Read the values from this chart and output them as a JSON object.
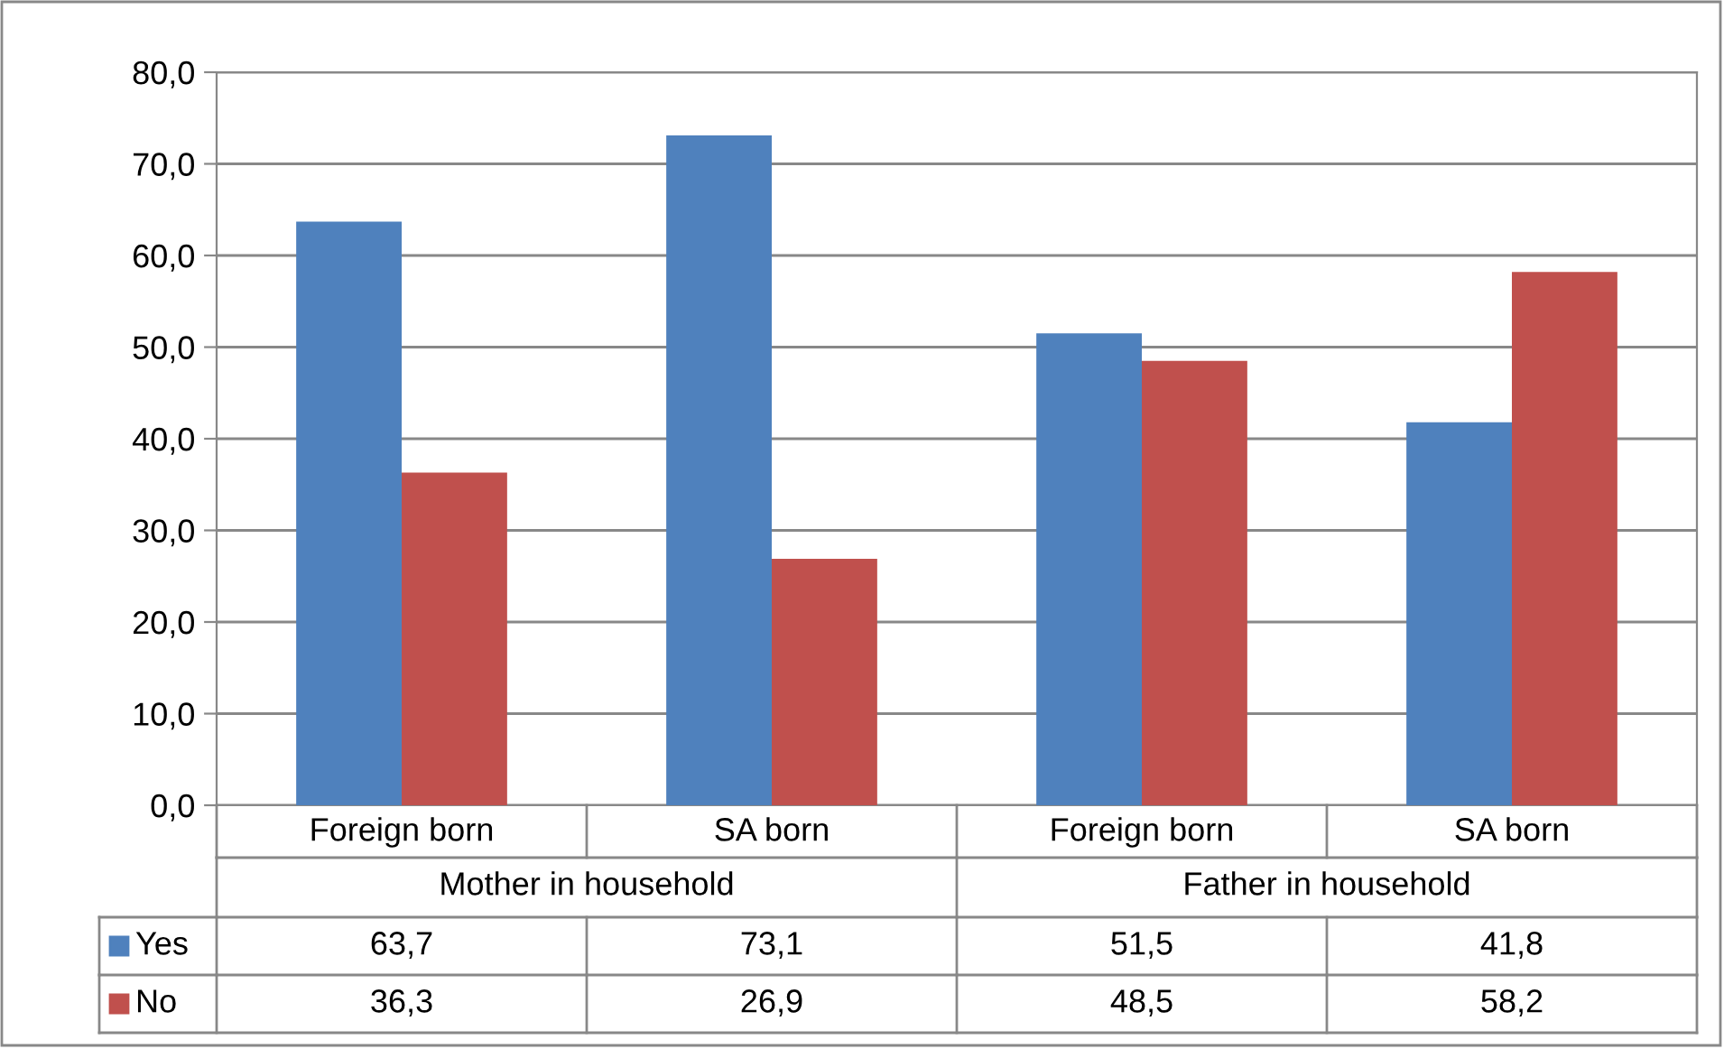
{
  "chart_data": {
    "type": "bar",
    "categories": [
      "Foreign born",
      "SA born",
      "Foreign born",
      "SA born"
    ],
    "annotations": [
      "Mother in household",
      "Father in household"
    ],
    "series": [
      {
        "name": "Yes",
        "color": "#4f81bd",
        "values": [
          63.7,
          73.1,
          51.5,
          41.8
        ],
        "value_labels": [
          "63,7",
          "73,1",
          "51,5",
          "41,8"
        ]
      },
      {
        "name": "No",
        "color": "#c0504d",
        "values": [
          36.3,
          26.9,
          48.5,
          58.2
        ],
        "value_labels": [
          "36,3",
          "26,9",
          "48,5",
          "58,2"
        ]
      }
    ],
    "ylim": [
      0,
      80
    ],
    "yticks": [
      {
        "value": 0,
        "label": "0,0"
      },
      {
        "value": 10,
        "label": "10,0"
      },
      {
        "value": 20,
        "label": "20,0"
      },
      {
        "value": 30,
        "label": "30,0"
      },
      {
        "value": 40,
        "label": "40,0"
      },
      {
        "value": 50,
        "label": "50,0"
      },
      {
        "value": 60,
        "label": "60,0"
      },
      {
        "value": 70,
        "label": "70,0"
      },
      {
        "value": 80,
        "label": "80,0"
      }
    ],
    "grid": "y",
    "legend": "bottom"
  }
}
